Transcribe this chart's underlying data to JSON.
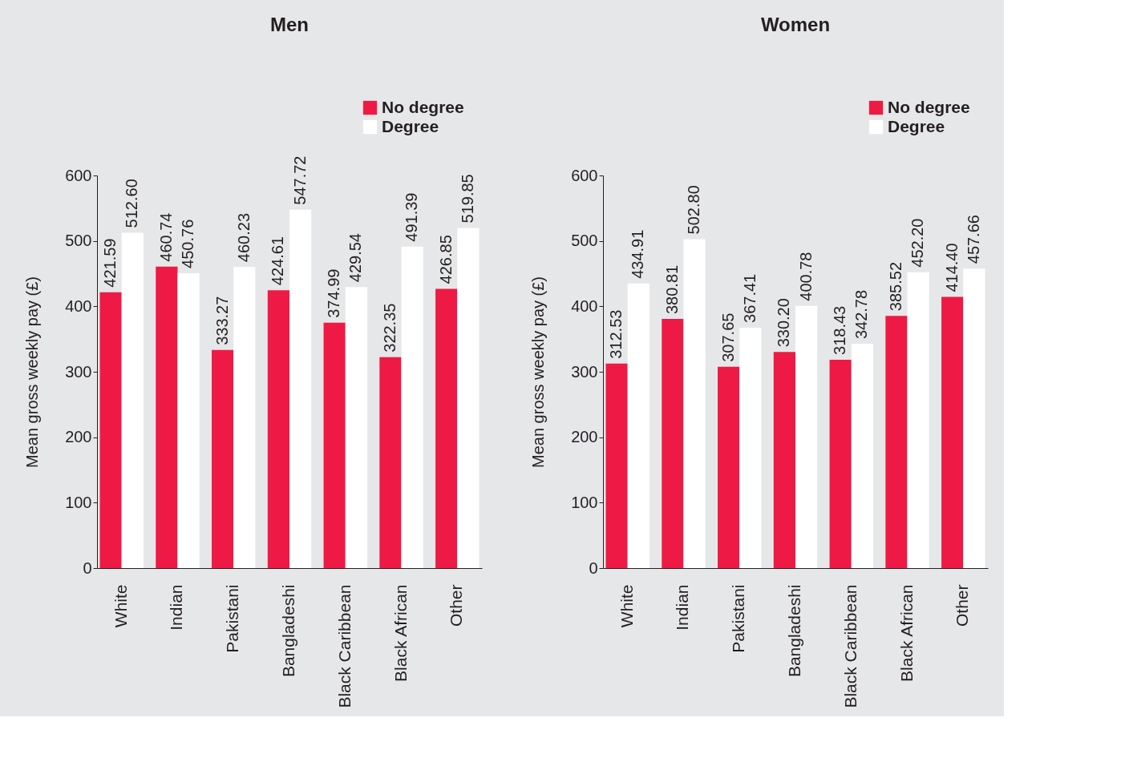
{
  "chart_data": [
    {
      "type": "bar",
      "title": "Men",
      "ylabel": "Mean gross weekly pay (£)",
      "categories": [
        "White",
        "Indian",
        "Pakistani",
        "Bangladeshi",
        "Black Caribbean",
        "Black African",
        "Other"
      ],
      "series": [
        {
          "name": "No degree",
          "color": "#ee1a45",
          "values": [
            421.59,
            460.74,
            333.27,
            424.61,
            374.99,
            322.35,
            426.85
          ],
          "value_labels": [
            "421.59",
            "460.74",
            "333.27",
            "424.61",
            "374.99",
            "322.35",
            "426.85"
          ]
        },
        {
          "name": "Degree",
          "color": "#ffffff",
          "values": [
            512.6,
            450.76,
            460.23,
            547.72,
            429.54,
            491.39,
            519.85
          ],
          "value_labels": [
            "512.60",
            "450.76",
            "460.23",
            "547.72",
            "429.54",
            "491.39",
            "519.85"
          ]
        }
      ],
      "ylim": [
        0,
        600
      ],
      "yticks": [
        0,
        100,
        200,
        300,
        400,
        500,
        600
      ],
      "grid": false,
      "legend": "top right"
    },
    {
      "type": "bar",
      "title": "Women",
      "ylabel": "Mean gross weekly pay (£)",
      "categories": [
        "White",
        "Indian",
        "Pakistani",
        "Bangladeshi",
        "Black Caribbean",
        "Black African",
        "Other"
      ],
      "series": [
        {
          "name": "No degree",
          "color": "#ee1a45",
          "values": [
            312.53,
            380.81,
            307.65,
            330.2,
            318.43,
            385.52,
            414.4
          ],
          "value_labels": [
            "312.53",
            "380.81",
            "307.65",
            "330.20",
            "318.43",
            "385.52",
            "414.40"
          ]
        },
        {
          "name": "Degree",
          "color": "#ffffff",
          "values": [
            434.91,
            502.8,
            367.41,
            400.78,
            342.78,
            452.2,
            457.66
          ],
          "value_labels": [
            "434.91",
            "502.80",
            "367.41",
            "400.78",
            "342.78",
            "452.20",
            "457.66"
          ]
        }
      ],
      "ylim": [
        0,
        600
      ],
      "yticks": [
        0,
        100,
        200,
        300,
        400,
        500,
        600
      ],
      "grid": false,
      "legend": "top right"
    }
  ]
}
